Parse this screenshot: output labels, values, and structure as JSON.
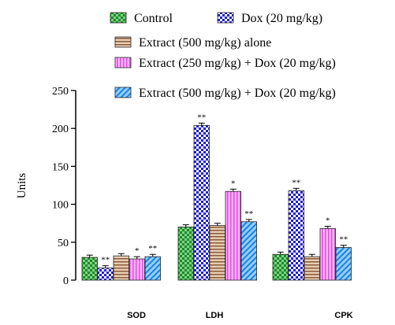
{
  "chart_data": {
    "type": "bar",
    "title": "",
    "xlabel": "",
    "ylabel": "Units",
    "ylim": [
      0,
      250
    ],
    "yticks": [
      0,
      50,
      100,
      150,
      200,
      250
    ],
    "grid": false,
    "legend_position": "top",
    "categories": [
      "SOD",
      "LDH",
      "CPK"
    ],
    "series": [
      {
        "name": "Control",
        "values": [
          30,
          70,
          34
        ],
        "errors": [
          3,
          3,
          3
        ],
        "color": "#2db34a",
        "pattern": "checker-green",
        "marks": [
          "",
          "",
          ""
        ]
      },
      {
        "name": "Dox (20 mg/kg)",
        "values": [
          16,
          204,
          118
        ],
        "errors": [
          3,
          3,
          3
        ],
        "color": "#2a2ad8",
        "pattern": "checker-blue",
        "marks": [
          "**",
          "**",
          "**"
        ]
      },
      {
        "name": "Extract (500 mg/kg) alone",
        "values": [
          32,
          72,
          31
        ],
        "errors": [
          3,
          3,
          3
        ],
        "color": "#d8b89a",
        "pattern": "hstripe-tan",
        "marks": [
          "",
          "",
          ""
        ]
      },
      {
        "name": "Extract (250 mg/kg) + Dox (20 mg/kg)",
        "values": [
          28,
          117,
          68
        ],
        "errors": [
          3,
          3,
          3
        ],
        "color": "#ff80ff",
        "pattern": "vstripe-pink",
        "marks": [
          "*",
          "*",
          "*"
        ]
      },
      {
        "name": "Extract (500 mg/kg) + Dox (20 mg/kg)",
        "values": [
          31,
          77,
          43
        ],
        "errors": [
          3,
          3,
          3
        ],
        "color": "#3aa0ff",
        "pattern": "dstripe-blue",
        "marks": [
          "**",
          "**",
          "**"
        ]
      }
    ]
  }
}
